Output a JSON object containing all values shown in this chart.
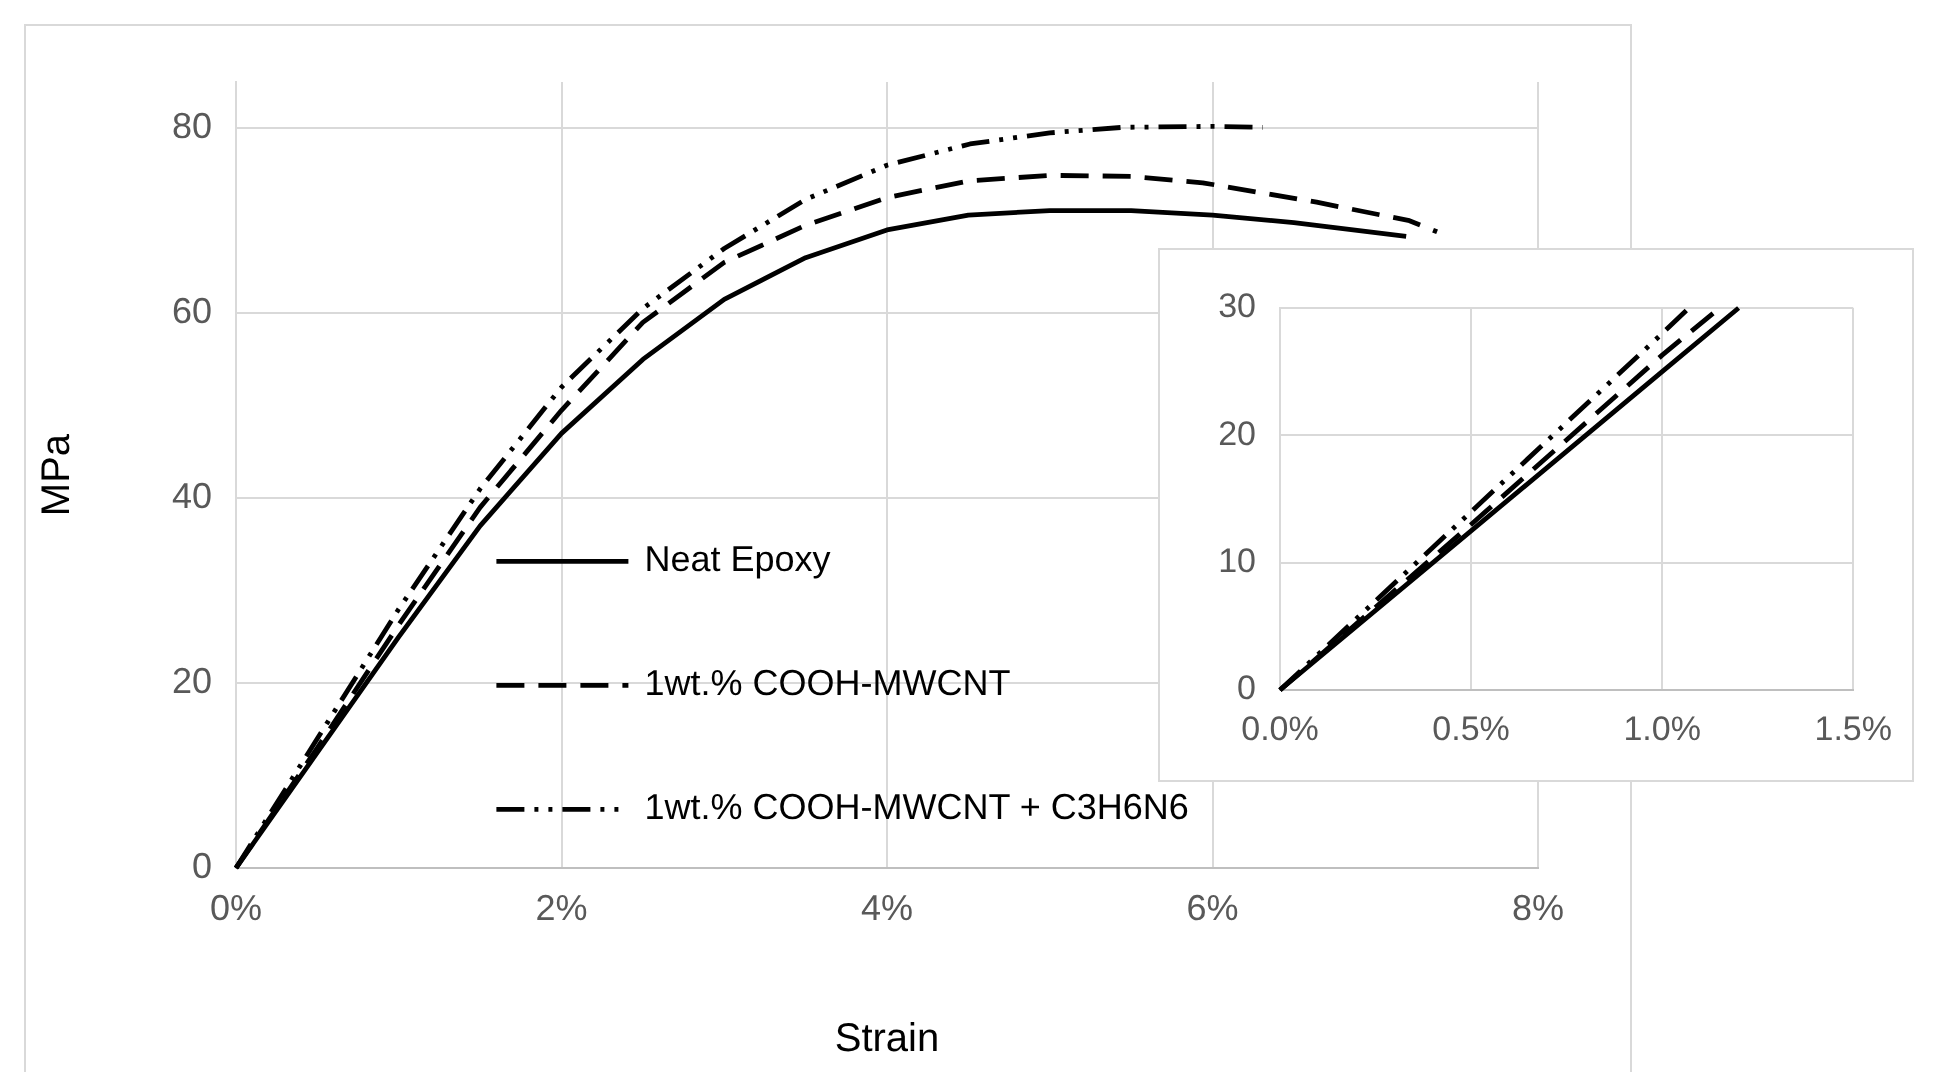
{
  "chart_data": [
    {
      "type": "line",
      "xlabel": "Strain",
      "ylabel": "MPa",
      "legend": "bottom",
      "grid": true,
      "marker": "none",
      "xlim": [
        0,
        8
      ],
      "xticks": [
        {
          "value": 0,
          "label": "0%"
        },
        {
          "value": 2,
          "label": "2%"
        },
        {
          "value": 4,
          "label": "4%"
        },
        {
          "value": 6,
          "label": "6%"
        },
        {
          "value": 8,
          "label": "8%"
        }
      ],
      "ylim": [
        0,
        85
      ],
      "yticks": [
        0,
        20,
        40,
        60,
        80
      ],
      "series": [
        {
          "name": "Neat Epoxy",
          "color": "#000000",
          "line_style": "solid",
          "x": [
            0,
            0.5,
            1,
            1.5,
            2,
            2.5,
            3,
            3.5,
            4,
            4.5,
            5,
            5.5,
            6,
            6.5,
            7.19
          ],
          "values": [
            0,
            12.5,
            25,
            37,
            47,
            55,
            61.5,
            66,
            69,
            70.6,
            71.1,
            71.1,
            70.6,
            69.8,
            68.3
          ]
        },
        {
          "name": "1wt.% COOH-MWCNT",
          "color": "#000000",
          "line_style": "dashed",
          "x": [
            0,
            0.5,
            1,
            1.5,
            2,
            2.5,
            3,
            3.5,
            4,
            4.5,
            5,
            5.5,
            5.94,
            6.64,
            7.21,
            7.38
          ],
          "values": [
            0,
            13,
            26.3,
            39,
            49.5,
            59,
            65.5,
            69.5,
            72.5,
            74.3,
            74.9,
            74.8,
            74.1,
            72,
            70,
            68.8
          ]
        },
        {
          "name": "1wt.% COOH-MWCNT + C3H6N6",
          "color": "#000000",
          "line_style": "dashdot",
          "x": [
            0,
            0.5,
            1,
            1.5,
            2,
            2.5,
            3,
            3.5,
            4,
            4.51,
            5,
            5.45,
            6,
            6.31
          ],
          "values": [
            0,
            14,
            28,
            41,
            52,
            60.5,
            67,
            72.3,
            76,
            78.3,
            79.5,
            80.1,
            80.2,
            80.1
          ]
        }
      ]
    },
    {
      "type": "line",
      "grid": true,
      "marker": "none",
      "xlim": [
        0,
        1.5
      ],
      "xticks": [
        {
          "value": 0,
          "label": "0.0%"
        },
        {
          "value": 0.5,
          "label": "0.5%"
        },
        {
          "value": 1,
          "label": "1.0%"
        },
        {
          "value": 1.5,
          "label": "1.5%"
        }
      ],
      "ylim": [
        0,
        30
      ],
      "yticks": [
        0,
        10,
        20,
        30
      ],
      "series": [
        {
          "color": "#000000",
          "line_style": "solid",
          "x": [
            0,
            0.5,
            1,
            1.2
          ],
          "values": [
            0,
            12.5,
            25,
            30
          ]
        },
        {
          "color": "#000000",
          "line_style": "dashed",
          "x": [
            0,
            0.5,
            1,
            1.15
          ],
          "values": [
            0,
            13,
            26.3,
            30
          ]
        },
        {
          "color": "#000000",
          "line_style": "dashdot",
          "x": [
            0,
            0.5,
            1,
            1.07
          ],
          "values": [
            0,
            14,
            28,
            30
          ]
        }
      ]
    }
  ]
}
